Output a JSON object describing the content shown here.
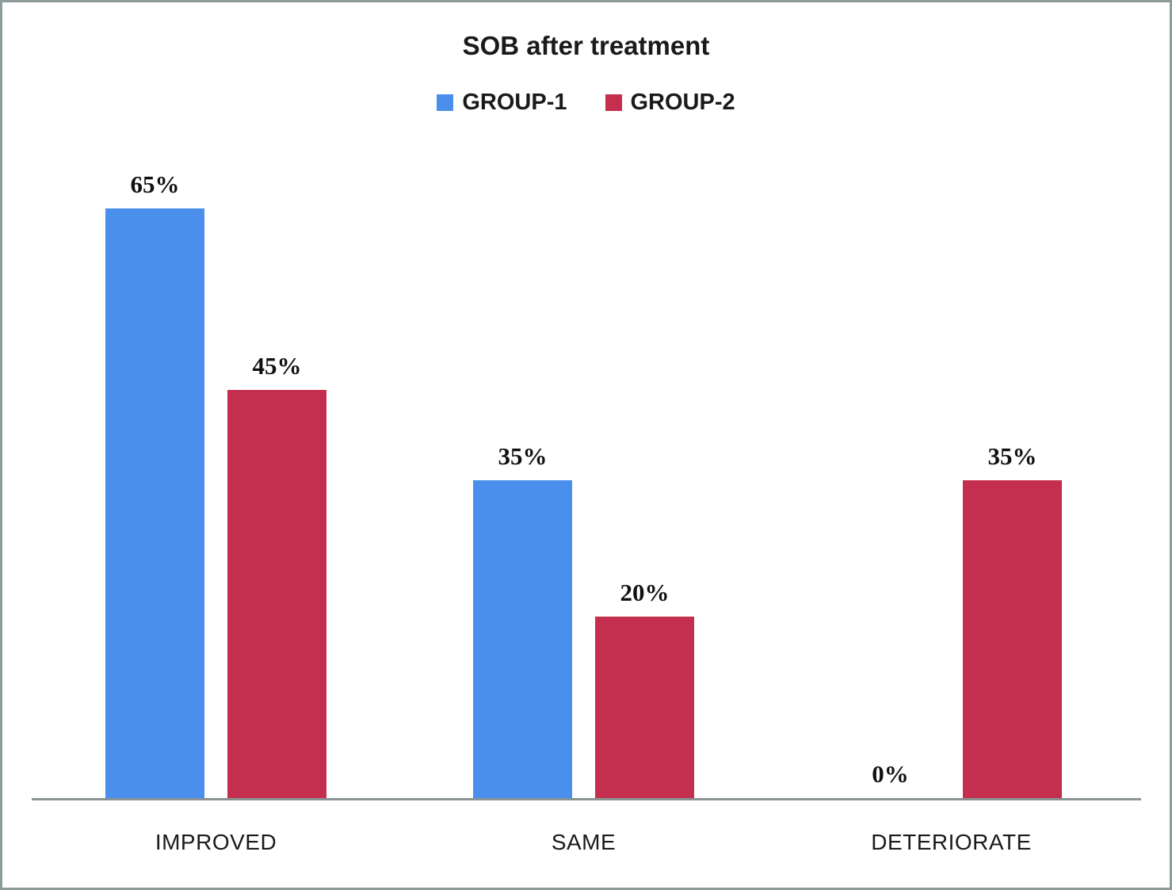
{
  "chart_data": {
    "type": "bar",
    "title": "SOB after treatment",
    "categories": [
      "IMPROVED",
      "SAME",
      "DETERIORATE"
    ],
    "series": [
      {
        "name": "GROUP-1",
        "color": "#4A8FEC",
        "values": [
          65,
          35,
          0
        ],
        "labels": [
          "65%",
          "35%",
          "0%"
        ]
      },
      {
        "name": "GROUP-2",
        "color": "#C52F4F",
        "values": [
          45,
          20,
          35
        ],
        "labels": [
          "45%",
          "20%",
          "35%"
        ]
      }
    ],
    "ylim": [
      0,
      70
    ],
    "value_label_format": "percent",
    "legend_position": "top-center",
    "grid": false,
    "y_axis_visible": false,
    "x_axis_line_visible": true
  },
  "style_colors": {
    "frame_border": "#8E9B9B",
    "axis_line": "#899393",
    "background": "#FFFFFF",
    "text": "#1A1A1A"
  }
}
